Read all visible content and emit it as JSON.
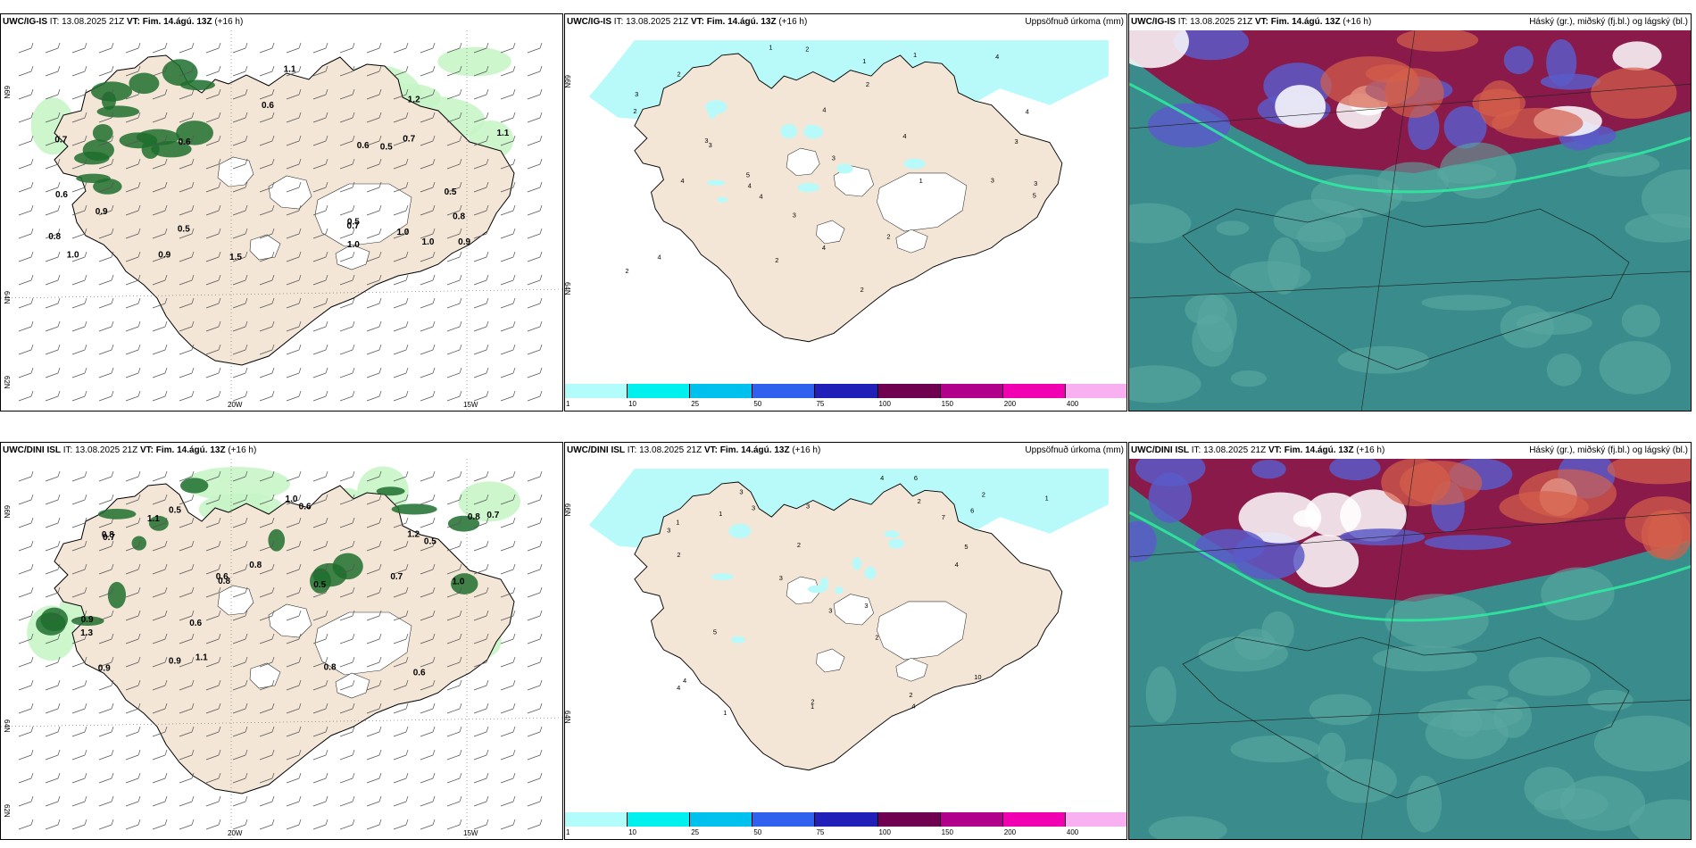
{
  "rows": [
    {
      "wind": {
        "model": "UWC/IG-IS",
        "it": "IT: 13.08.2025 21Z",
        "vt_label": "VT:",
        "vt": "Fim. 14.ágú. 13Z",
        "lead": "(+16 h)",
        "lon_labels": [
          "20W",
          "15W"
        ],
        "lat_labels": [
          "66N",
          "64N",
          "62N"
        ]
      },
      "precip": {
        "model": "UWC/IG-IS",
        "it": "IT: 13.08.2025 21Z",
        "vt_label": "VT:",
        "vt": "Fim. 14.ágú. 13Z",
        "lead": "(+16 h)",
        "right": "Uppsöfnuð úrkoma (mm)",
        "lat_labels": [
          "66N",
          "64N"
        ]
      },
      "cloud": {
        "model": "UWC/IG-IS",
        "it": "IT: 13.08.2025 21Z",
        "vt_label": "VT:",
        "vt": "Fim. 14.ágú. 13Z",
        "lead": "(+16 h)",
        "right": "Háský (gr.), miðský (fj.bl.) og lágský (bl.)"
      }
    },
    {
      "wind": {
        "model": "UWC/DINI ISL",
        "it": "IT: 13.08.2025 21Z",
        "vt_label": "VT:",
        "vt": "Fim. 14.ágú. 13Z",
        "lead": "(+16 h)",
        "lon_labels": [
          "20W",
          "15W"
        ],
        "lat_labels": [
          "66N",
          "64N",
          "62N"
        ]
      },
      "precip": {
        "model": "UWC/DINI ISL",
        "it": "IT: 13.08.2025 21Z",
        "vt_label": "VT:",
        "vt": "Fim. 14.ágú. 13Z",
        "lead": "(+16 h)",
        "right": "Uppsöfnuð úrkoma (mm)",
        "lat_labels": [
          "66N",
          "64N"
        ]
      },
      "cloud": {
        "model": "UWC/DINI ISL",
        "it": "IT: 13.08.2025 21Z",
        "vt_label": "VT:",
        "vt": "Fim. 14.ágú. 13Z",
        "lead": "(+16 h)",
        "right": "Háský (gr.), miðský (fj.bl.) og lágský (bl.)"
      }
    }
  ],
  "colorbar": {
    "labels": [
      "1",
      "10",
      "25",
      "50",
      "75",
      "100",
      "150",
      "200",
      "400"
    ],
    "colors": [
      "#b2fcfc",
      "#00f0f0",
      "#00c0ee",
      "#3060ee",
      "#2020b8",
      "#700050",
      "#b0008c",
      "#f000b0",
      "#f8b0f0"
    ]
  },
  "colors": {
    "land": "#f3e6d6",
    "precip_light": "#b8fafa",
    "wind_green_light": "#c8f5c8",
    "wind_green_dark": "#1e6e2e",
    "sea_cloud": "#3a8c8c",
    "high_cloud": "#8a1a4a",
    "mid_cloud": "#5a5ac8"
  },
  "wind_labels": {
    "row0": [
      "0.6",
      "0.7",
      "0.9",
      "1.0",
      "0.8",
      "0.5",
      "0.9",
      "1.0",
      "1.1",
      "0.6",
      "0.5",
      "1.0",
      "1.2",
      "0.9",
      "0.8",
      "0.7",
      "0.5",
      "1.0",
      "1.1",
      "0.6",
      "0.7",
      "0.5",
      "1.5",
      "0.6"
    ],
    "row1": [
      "1.1",
      "1.0",
      "0.8",
      "0.6",
      "1.3",
      "0.7",
      "0.5",
      "0.9",
      "0.6",
      "0.8",
      "1.2",
      "0.5",
      "0.8",
      "0.7",
      "1.1",
      "0.6",
      "0.9",
      "0.5",
      "1.0",
      "0.8",
      "0.9",
      "0.6",
      "0.7",
      "0.8"
    ]
  },
  "precip_labels": {
    "row0": [
      "3",
      "4",
      "3",
      "4",
      "4",
      "5",
      "3",
      "4",
      "4",
      "3",
      "4",
      "2",
      "5",
      "2",
      "3",
      "4",
      "4",
      "3",
      "1",
      "2",
      "4",
      "2",
      "2",
      "3",
      "2",
      "2",
      "3",
      "1",
      "1",
      "2",
      "1"
    ],
    "row1": [
      "3",
      "5",
      "4",
      "3",
      "6",
      "4",
      "10",
      "3",
      "2",
      "7",
      "4",
      "6",
      "5",
      "2",
      "2",
      "3",
      "4",
      "3",
      "1",
      "2",
      "4",
      "1",
      "3",
      "2",
      "1",
      "1",
      "2",
      "3",
      "2",
      "1"
    ]
  }
}
